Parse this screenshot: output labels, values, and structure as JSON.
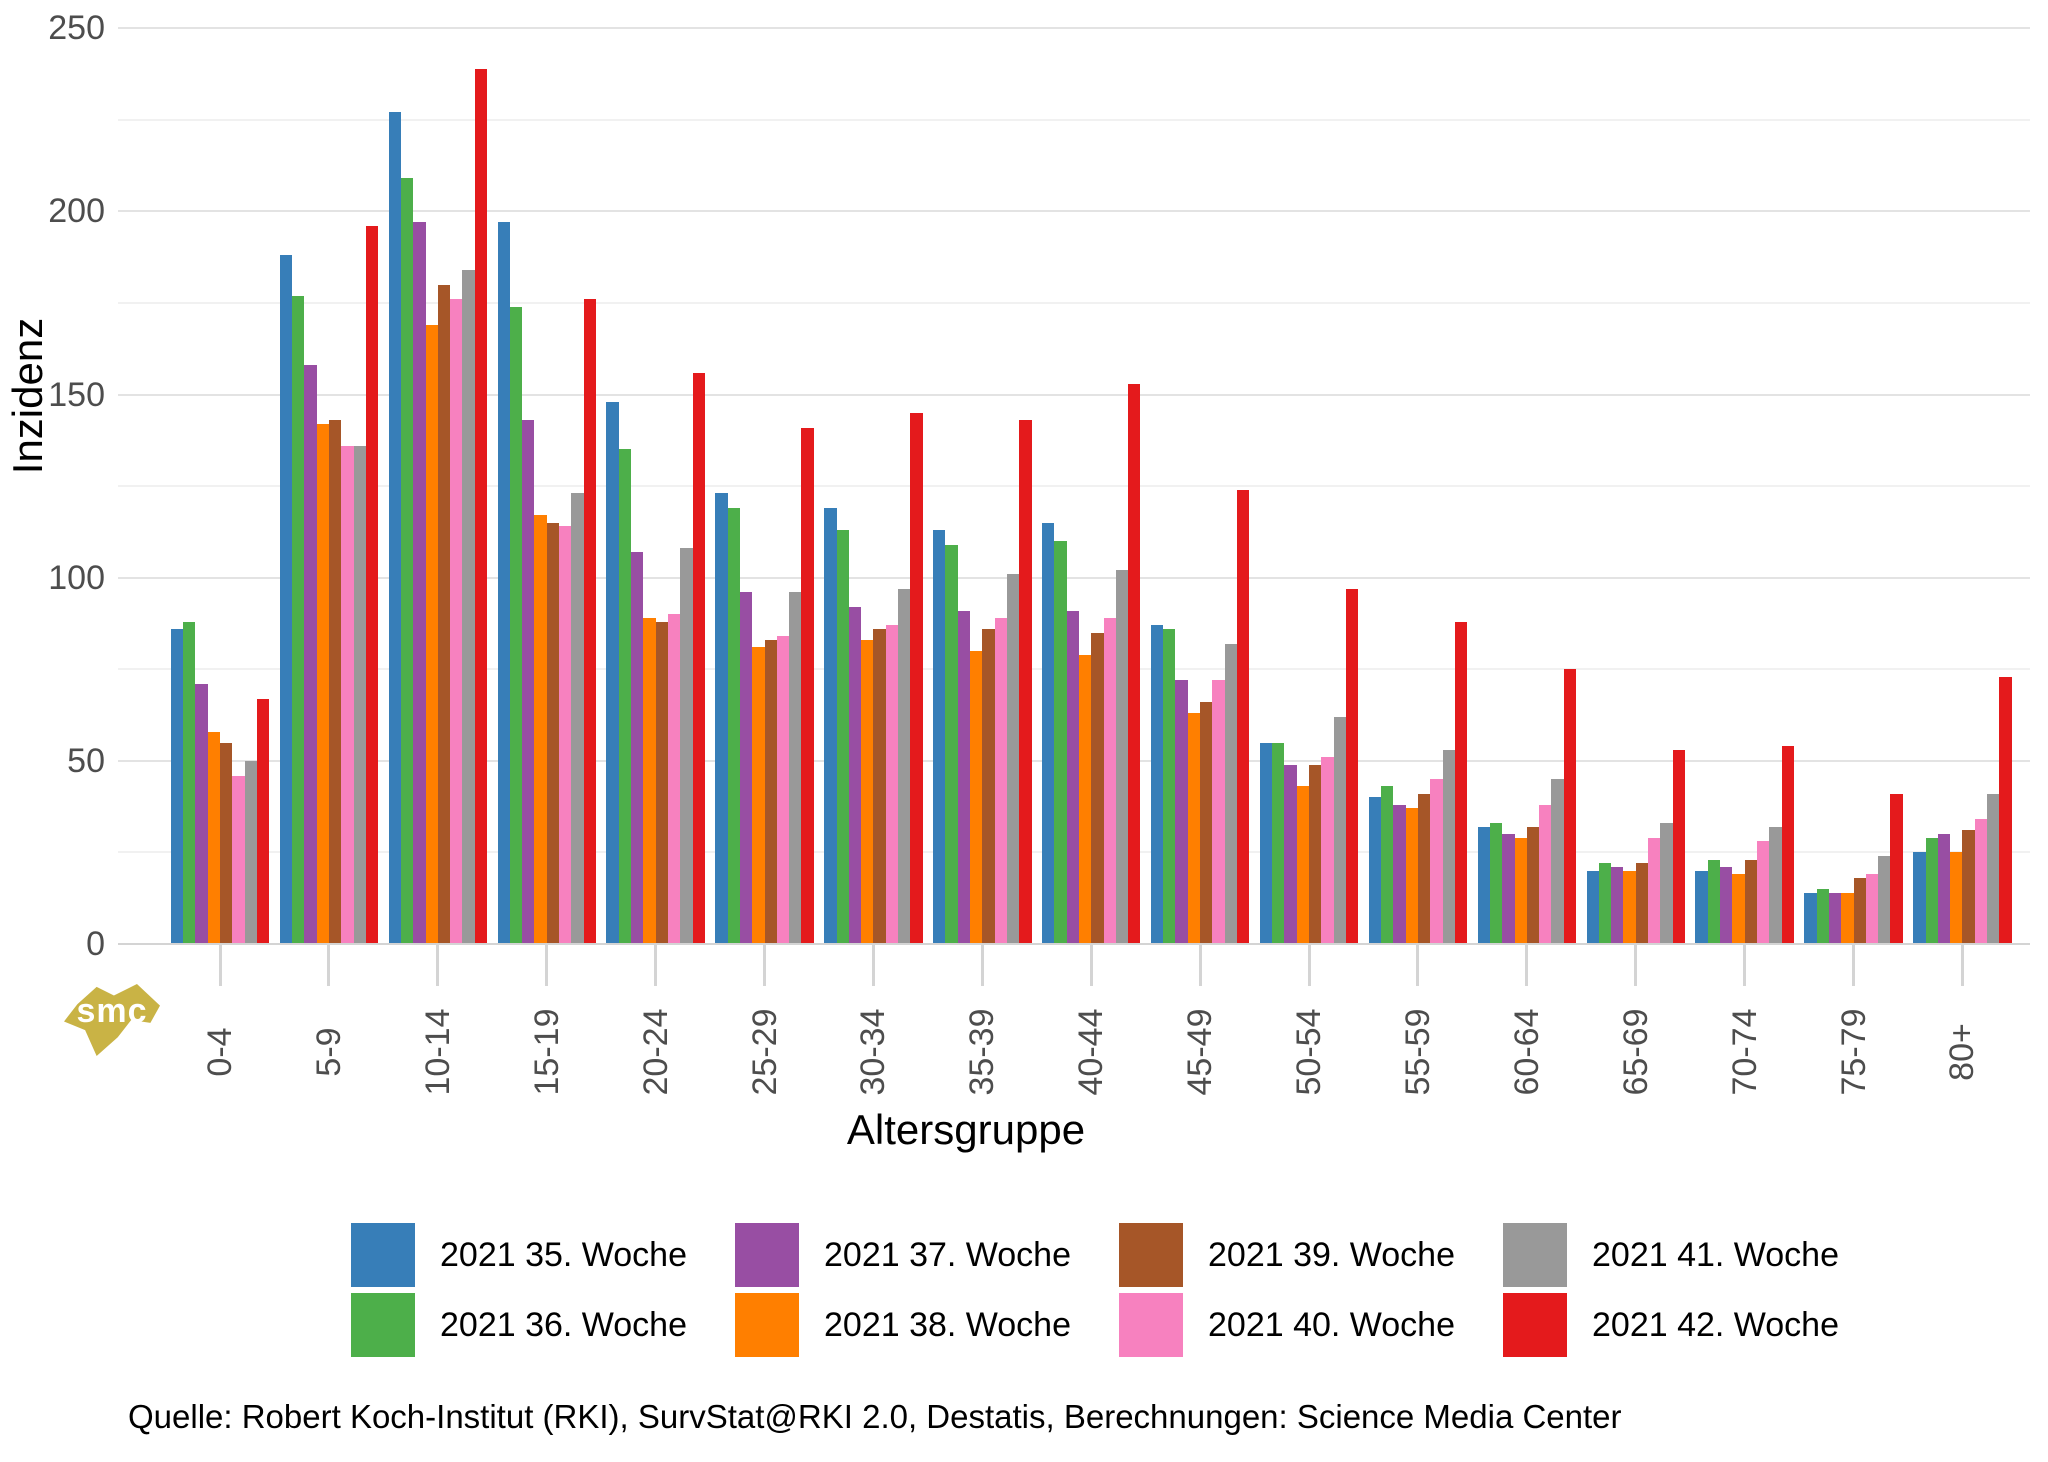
{
  "page": {
    "background": "#ffffff",
    "source_note": "Quelle: Robert Koch-Institut (RKI), SurvStat@RKI 2.0, Destatis, Berechnungen: Science Media Center",
    "logo_text": "smc",
    "logo_color": "#c9b345"
  },
  "chart_data": {
    "type": "bar",
    "grouped": true,
    "title": "",
    "xlabel": "Altersgruppe",
    "ylabel": "Inzidenz",
    "ylim": [
      0,
      250
    ],
    "yticks": [
      0,
      50,
      100,
      150,
      200,
      250
    ],
    "yticks_minor": [
      25,
      75,
      125,
      175,
      225
    ],
    "grid": "horizontal major+minor",
    "legend_position": "bottom, 4 columns x 2 rows",
    "categories": [
      "0-4",
      "5-9",
      "10-14",
      "15-19",
      "20-24",
      "25-29",
      "30-34",
      "35-39",
      "40-44",
      "45-49",
      "50-54",
      "55-59",
      "60-64",
      "65-69",
      "70-74",
      "75-79",
      "80+"
    ],
    "series": [
      {
        "name": "2021 35. Woche",
        "color": "#377eb8",
        "values": [
          86,
          188,
          227,
          197,
          148,
          123,
          119,
          113,
          115,
          87,
          55,
          40,
          32,
          20,
          20,
          14,
          25
        ]
      },
      {
        "name": "2021 36. Woche",
        "color": "#4daf4a",
        "values": [
          88,
          177,
          209,
          174,
          135,
          119,
          113,
          109,
          110,
          86,
          55,
          43,
          33,
          22,
          23,
          15,
          29
        ]
      },
      {
        "name": "2021 37. Woche",
        "color": "#984ea3",
        "values": [
          71,
          158,
          197,
          143,
          107,
          96,
          92,
          91,
          91,
          72,
          49,
          38,
          30,
          21,
          21,
          14,
          30
        ]
      },
      {
        "name": "2021 38. Woche",
        "color": "#ff7f00",
        "values": [
          58,
          142,
          169,
          117,
          89,
          81,
          83,
          80,
          79,
          63,
          43,
          37,
          29,
          20,
          19,
          14,
          25
        ]
      },
      {
        "name": "2021 39. Woche",
        "color": "#a65628",
        "values": [
          55,
          143,
          180,
          115,
          88,
          83,
          86,
          86,
          85,
          66,
          49,
          41,
          32,
          22,
          23,
          18,
          31
        ]
      },
      {
        "name": "2021 40. Woche",
        "color": "#f781bf",
        "values": [
          46,
          136,
          176,
          114,
          90,
          84,
          87,
          89,
          89,
          72,
          51,
          45,
          38,
          29,
          28,
          19,
          34
        ]
      },
      {
        "name": "2021 41. Woche",
        "color": "#999999",
        "values": [
          50,
          136,
          184,
          123,
          108,
          96,
          97,
          101,
          102,
          82,
          62,
          53,
          45,
          33,
          32,
          24,
          41
        ]
      },
      {
        "name": "2021 42. Woche",
        "color": "#e41a1c",
        "values": [
          67,
          196,
          239,
          176,
          156,
          141,
          145,
          143,
          153,
          124,
          97,
          88,
          75,
          53,
          54,
          41,
          73
        ]
      }
    ]
  }
}
